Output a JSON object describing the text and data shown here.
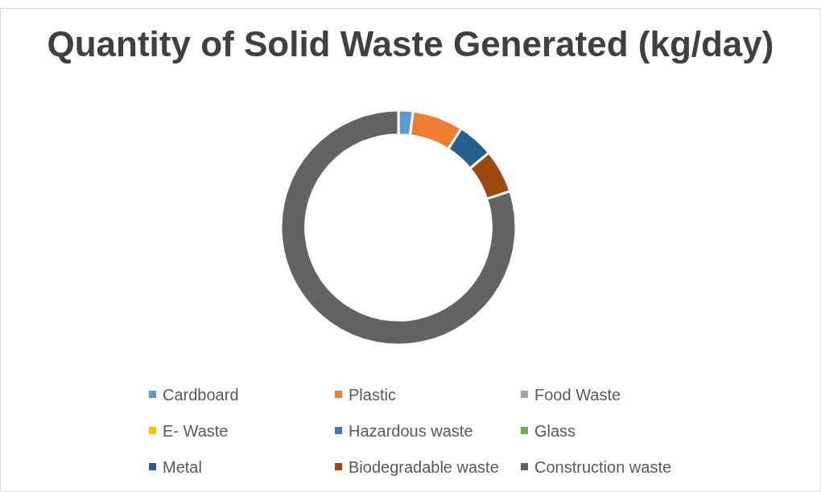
{
  "chart_data": {
    "type": "donut",
    "title": "Quantity of Solid Waste Generated (kg/day)",
    "categories": [
      "Cardboard",
      "Plastic",
      "Food Waste",
      "E- Waste",
      "Hazardous waste",
      "Glass",
      "Metal",
      "Biodegradable waste",
      "Construction waste"
    ],
    "values": [
      2,
      7,
      0,
      0,
      0,
      0,
      5,
      6,
      80
    ],
    "colors": [
      "#5b9bd5",
      "#ed7d31",
      "#a5a5a5",
      "#ffc000",
      "#4472c4",
      "#70ad47",
      "#255e91",
      "#9e480e",
      "#636363"
    ],
    "legend": "bottom"
  }
}
